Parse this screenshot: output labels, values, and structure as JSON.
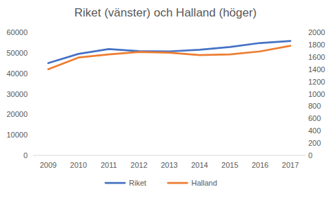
{
  "chart_data": {
    "type": "line",
    "title": "Riket (vänster) och Halland (höger)",
    "categories": [
      "2009",
      "2010",
      "2011",
      "2012",
      "2013",
      "2014",
      "2015",
      "2016",
      "2017"
    ],
    "series": [
      {
        "name": "Riket",
        "color": "#4472c4",
        "values": [
          45000,
          49500,
          51800,
          50800,
          50700,
          51500,
          52800,
          54800,
          55800
        ]
      },
      {
        "name": "Halland",
        "color": "#ed7d31",
        "axis": "y2",
        "values": [
          1400,
          1590,
          1640,
          1680,
          1670,
          1630,
          1640,
          1690,
          1780
        ]
      }
    ],
    "ylim": [
      0,
      60000
    ],
    "yticks": [
      0,
      10000,
      20000,
      30000,
      40000,
      50000,
      60000
    ],
    "y2lim": [
      0,
      2000
    ],
    "y2ticks": [
      0,
      200,
      400,
      600,
      800,
      1000,
      1200,
      1400,
      1600,
      1800,
      2000
    ],
    "grid": false,
    "legend": "bottom"
  }
}
